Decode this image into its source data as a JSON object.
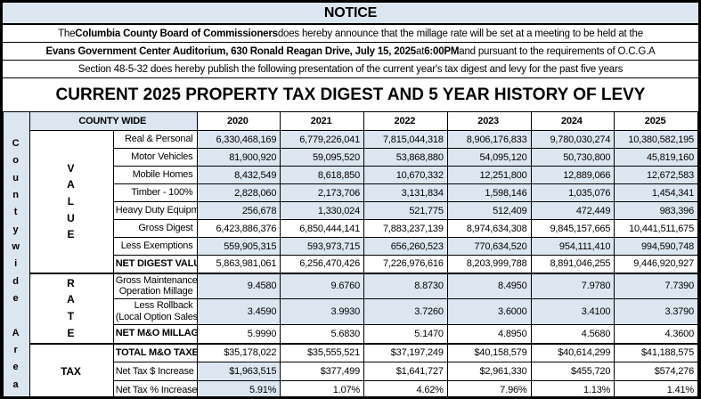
{
  "document": {
    "notice_header": "NOTICE",
    "notice_lines": [
      {
        "segments": [
          {
            "text": "The ",
            "bold": false
          },
          {
            "text": "Columbia County Board of Commissioners",
            "bold": true
          },
          {
            "text": " does hereby announce that the millage rate will be set at a meeting to be held at the",
            "bold": false
          }
        ]
      },
      {
        "segments": [
          {
            "text": "Evans Government Center Auditorium, 630 Ronald Reagan Drive, July 15, 2025",
            "bold": true
          },
          {
            "text": " at ",
            "bold": false
          },
          {
            "text": "6:00PM",
            "bold": true
          },
          {
            "text": " and pursuant to the requirements of O.C.G.A",
            "bold": false
          }
        ]
      },
      {
        "segments": [
          {
            "text": "Section 48-5-32 does hereby publish the following presentation of the current year's tax digest and levy for the past five years",
            "bold": false
          }
        ]
      }
    ],
    "title": "CURRENT 2025 PROPERTY TAX DIGEST AND 5 YEAR HISTORY OF LEVY"
  },
  "table": {
    "area_label": "Countywide Area",
    "area_letters": [
      "C",
      "o",
      "u",
      "n",
      "t",
      "y",
      "w",
      "i",
      "d",
      "e",
      "",
      "A",
      "r",
      "e",
      "a"
    ],
    "header_group_label": "COUNTY WIDE",
    "years": [
      "2020",
      "2021",
      "2022",
      "2023",
      "2024",
      "2025"
    ],
    "sections": [
      {
        "group": "VALUE",
        "vertical": true,
        "rows": [
          {
            "label": "Real & Personal",
            "bold": false,
            "highlight": "all",
            "values": [
              "6,330,468,169",
              "6,779,226,041",
              "7,815,044,318",
              "8,906,176,833",
              "9,780,030,274",
              "10,380,582,195"
            ]
          },
          {
            "label": "Motor Vehicles",
            "bold": false,
            "highlight": "all",
            "values": [
              "81,900,920",
              "59,095,520",
              "53,868,880",
              "54,095,120",
              "50,730,800",
              "45,819,160"
            ]
          },
          {
            "label": "Mobile Homes",
            "bold": false,
            "highlight": "all",
            "values": [
              "8,432,549",
              "8,618,850",
              "10,670,332",
              "12,251,800",
              "12,889,066",
              "12,672,583"
            ]
          },
          {
            "label": "Timber - 100%",
            "bold": false,
            "highlight": "all",
            "values": [
              "2,828,060",
              "2,173,706",
              "3,131,834",
              "1,598,146",
              "1,035,076",
              "1,454,341"
            ]
          },
          {
            "label": "Heavy Duty Equipment",
            "bold": false,
            "highlight": "all",
            "values": [
              "256,678",
              "1,330,024",
              "521,775",
              "512,409",
              "472,449",
              "983,396"
            ]
          },
          {
            "label": "Gross Digest",
            "bold": false,
            "highlight": "none",
            "values": [
              "6,423,886,376",
              "6,850,444,141",
              "7,883,237,139",
              "8,974,634,308",
              "9,845,157,665",
              "10,441,511,675"
            ]
          },
          {
            "label": "Less Exemptions",
            "bold": false,
            "highlight": "all",
            "values": [
              "559,905,315",
              "593,973,715",
              "656,260,523",
              "770,634,520",
              "954,111,410",
              "994,590,748"
            ]
          },
          {
            "label": "NET DIGEST VALUE",
            "bold": true,
            "highlight": "none",
            "values": [
              "5,863,981,061",
              "6,256,470,426",
              "7,226,976,616",
              "8,203,999,788",
              "8,891,046,255",
              "9,446,920,927"
            ]
          }
        ]
      },
      {
        "group": "RATE",
        "vertical": true,
        "rows": [
          {
            "label": "Gross Maintenance &",
            "label2": "Operation Millage",
            "bold": false,
            "highlight": "all",
            "values": [
              "9.4580",
              "9.6760",
              "8.8730",
              "8.4950",
              "7.9780",
              "7.7390"
            ]
          },
          {
            "label": "Less Rollback",
            "label2": "(Local Option Sales Tax)",
            "bold": false,
            "highlight": "all",
            "values": [
              "3.4590",
              "3.9930",
              "3.7260",
              "3.6000",
              "3.4100",
              "3.3790"
            ]
          },
          {
            "label": "NET M&O MILLAGE RATE",
            "bold": true,
            "highlight": "none",
            "values": [
              "5.9990",
              "5.6830",
              "5.1470",
              "4.8950",
              "4.5680",
              "4.3600"
            ]
          }
        ]
      },
      {
        "group": "TAX",
        "vertical": false,
        "rows": [
          {
            "label": "TOTAL M&O TAXES LEVIED",
            "bold": true,
            "highlight": "none",
            "values": [
              "$35,178,022",
              "$35,555,521",
              "$37,197,249",
              "$40,158,579",
              "$40,614,299",
              "$41,188,575"
            ]
          },
          {
            "label": "Net Tax $ Increase",
            "bold": false,
            "highlight": "first",
            "values": [
              "$1,963,515",
              "$377,499",
              "$1,641,727",
              "$2,961,330",
              "$455,720",
              "$574,276"
            ]
          },
          {
            "label": "Net Tax % Increase",
            "bold": false,
            "highlight": "first",
            "values": [
              "5.91%",
              "1.07%",
              "4.62%",
              "7.96%",
              "1.13%",
              "1.41%"
            ]
          }
        ]
      }
    ]
  },
  "colors": {
    "highlight_blue": "#dce6f1",
    "border_black": "#000000",
    "text_black": "#000000"
  }
}
